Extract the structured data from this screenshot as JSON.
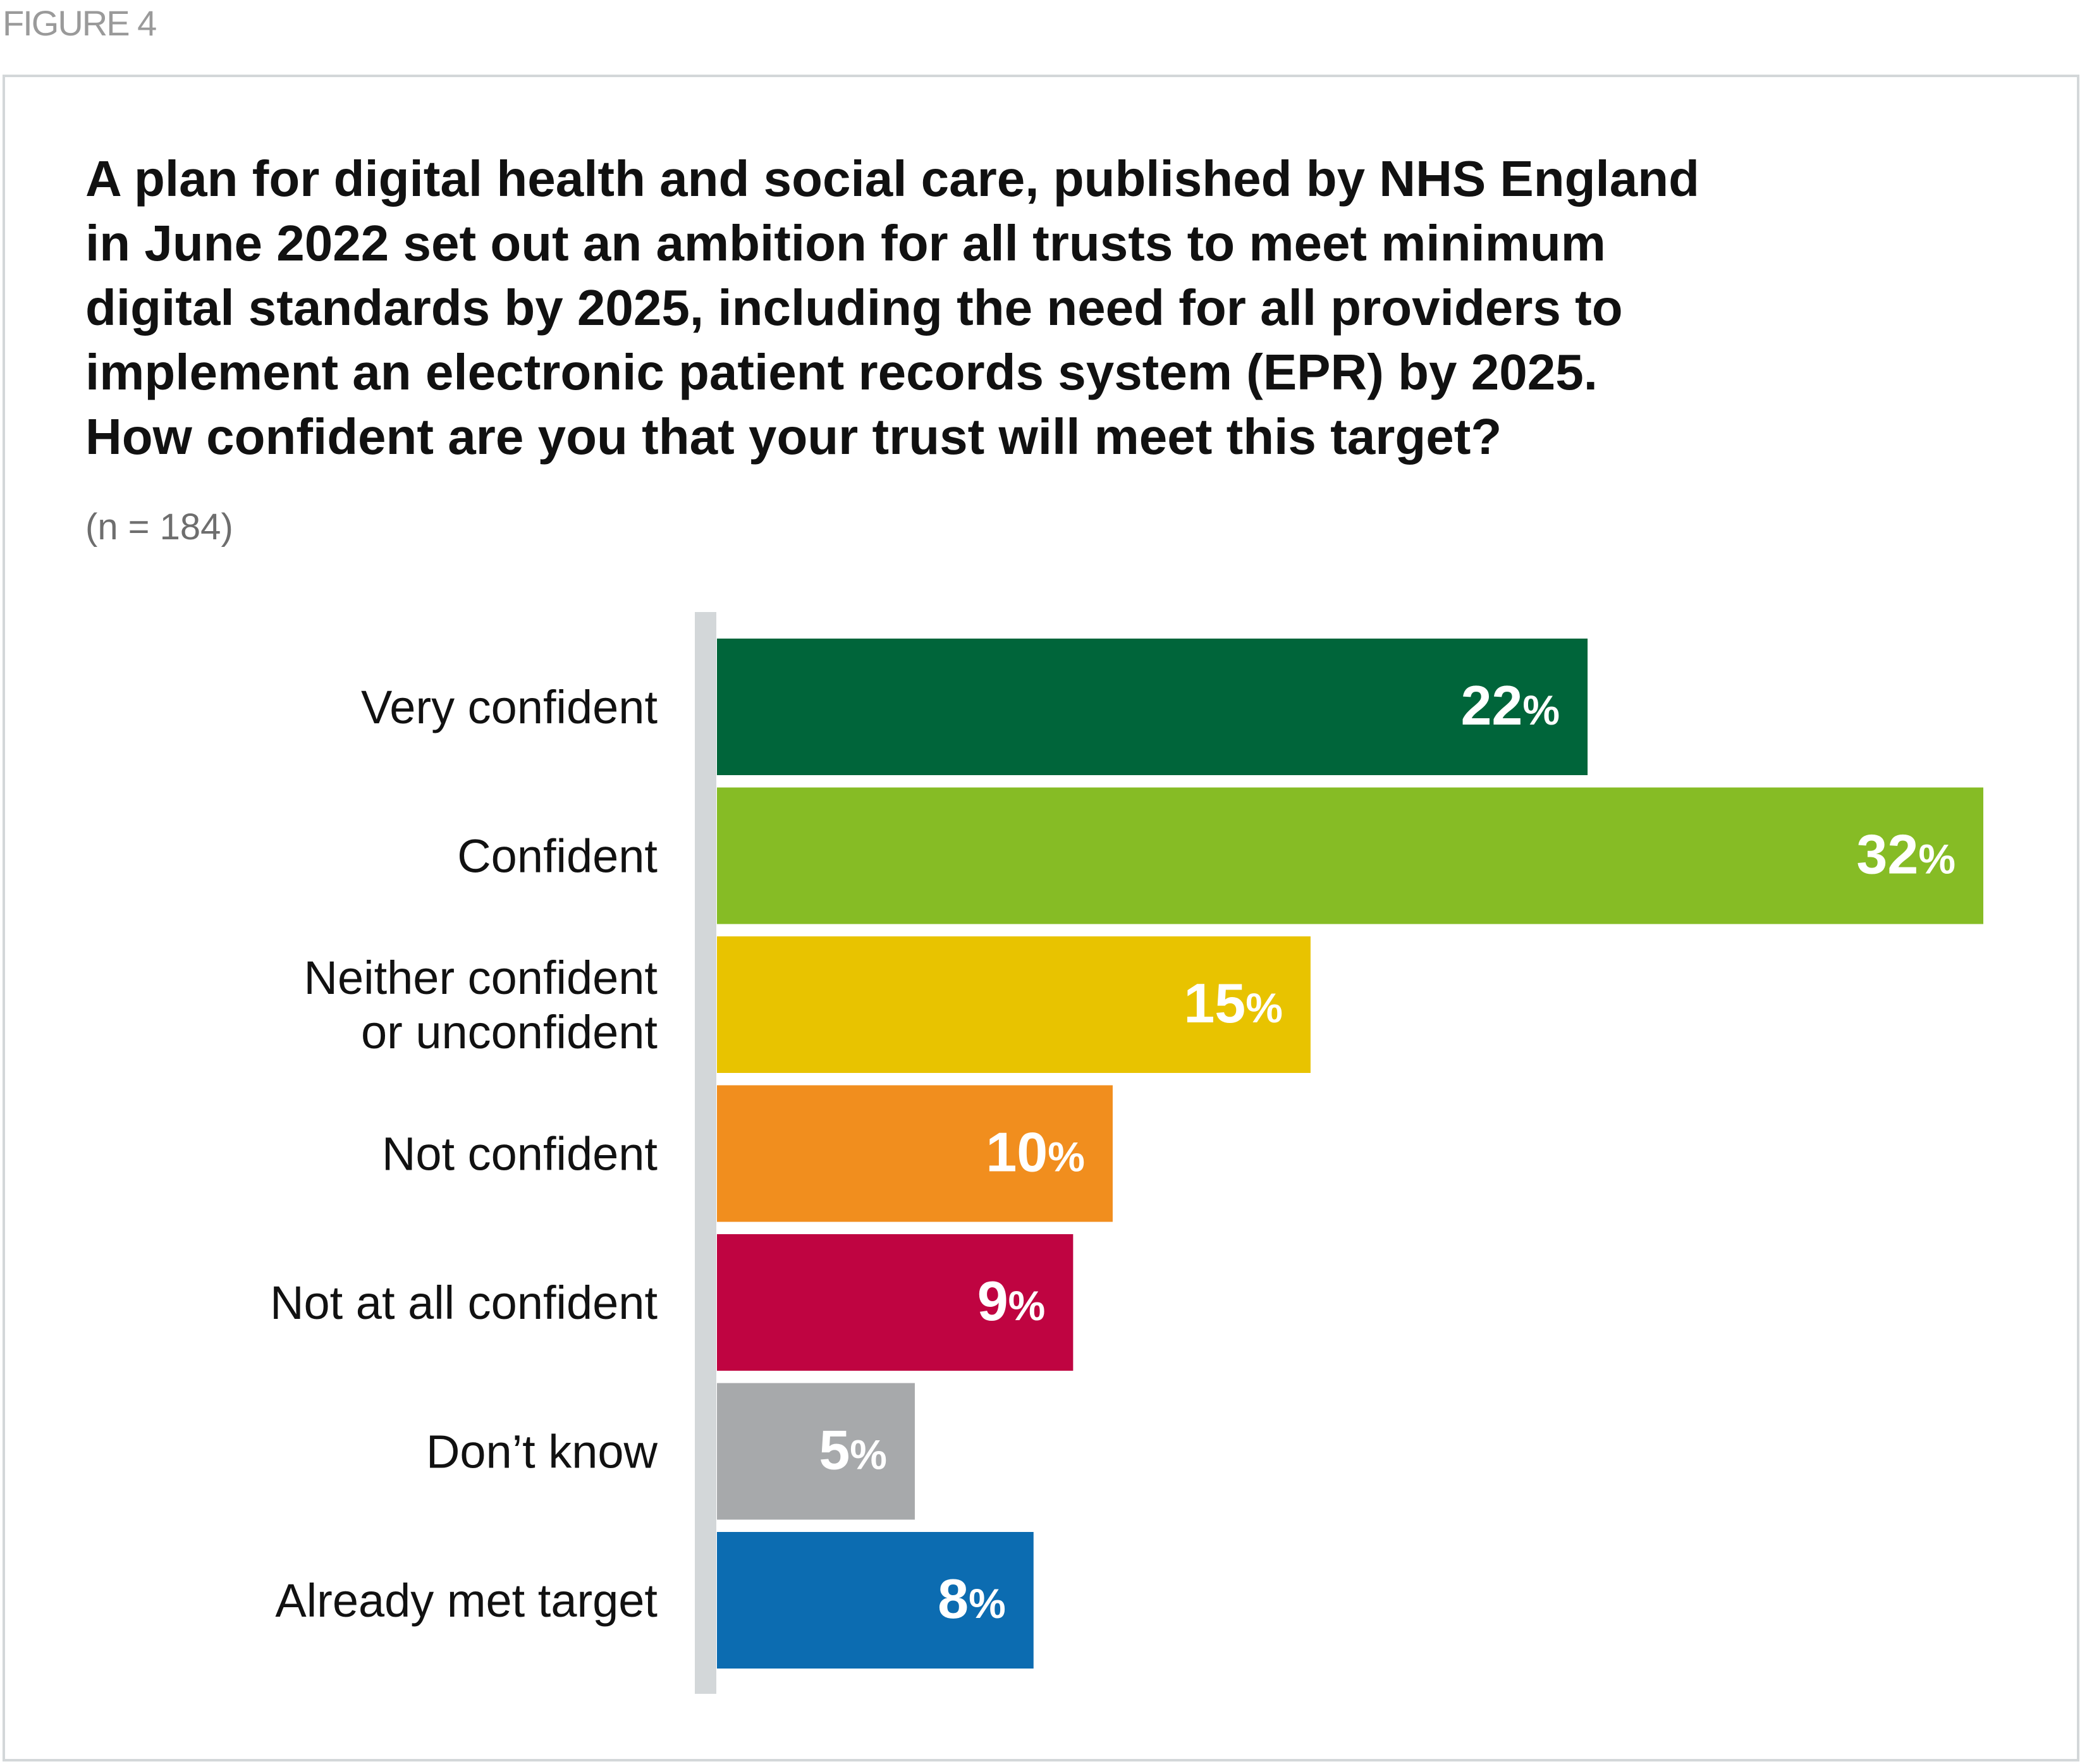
{
  "figure_label": "FIGURE 4",
  "title_lines": [
    "A plan for digital health and social care, published by NHS England",
    "in June 2022 set out an ambition for all trusts to meet minimum",
    "digital standards by 2025, including the need for all providers to",
    "implement an electronic patient records system (EPR) by 2025.",
    "How confident are you that your trust will meet this target?"
  ],
  "sample_size": "(n = 184)",
  "chart_data": {
    "type": "bar",
    "orientation": "horizontal",
    "categories": [
      "Very confident",
      "Confident",
      "Neither confident or unconfident",
      "Not confident",
      "Not at all confident",
      "Don’t know",
      "Already met target"
    ],
    "category_label_lines": [
      [
        "Very confident"
      ],
      [
        "Confident"
      ],
      [
        "Neither confident",
        "or unconfident"
      ],
      [
        "Not confident"
      ],
      [
        "Not at all confident"
      ],
      [
        "Don’t know"
      ],
      [
        "Already met target"
      ]
    ],
    "values": [
      22,
      32,
      15,
      10,
      9,
      5,
      8
    ],
    "value_suffix": "%",
    "colors": [
      "#00653a",
      "#86bc25",
      "#e8c300",
      "#f18e1e",
      "#bf0441",
      "#a7a9ab",
      "#0c6cb1"
    ],
    "axis_color": "#d3d7d9",
    "xlim": [
      0,
      32
    ],
    "title": "How confident are you that your trust will meet this target?",
    "xlabel": "",
    "ylabel": "",
    "grid": false,
    "legend": "none"
  }
}
